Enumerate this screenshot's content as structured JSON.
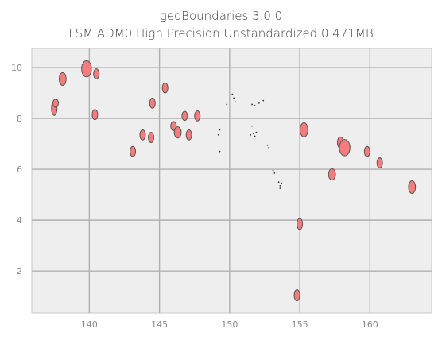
{
  "title": "geoBoundaries 3.0.0",
  "subtitle": "FSM ADM0 High Precision Unstandardized 0.471MB",
  "chart_data": {
    "type": "map",
    "title": "geoBoundaries 3.0.0",
    "subtitle": "FSM ADM0 High Precision Unstandardized 0.471MB",
    "xlabel": "",
    "ylabel": "",
    "xlim": [
      135.9,
      164.4
    ],
    "ylim": [
      0.35,
      10.75
    ],
    "xticks": [
      140,
      145,
      150,
      155,
      160
    ],
    "yticks": [
      2,
      4,
      6,
      8,
      10
    ],
    "grid": true,
    "colors": {
      "fill": "#f47c7c",
      "edge": "#555555",
      "background": "#eeeeee",
      "grid": "#b0b0b0"
    },
    "islands": [
      {
        "x": 139.8,
        "y": 9.95,
        "rx": 0.35,
        "ry": 0.32
      },
      {
        "x": 138.1,
        "y": 9.55,
        "rx": 0.25,
        "ry": 0.25
      },
      {
        "x": 140.5,
        "y": 9.75,
        "rx": 0.2,
        "ry": 0.2
      },
      {
        "x": 137.5,
        "y": 8.4,
        "rx": 0.2,
        "ry": 0.28
      },
      {
        "x": 137.6,
        "y": 8.6,
        "rx": 0.16,
        "ry": 0.16
      },
      {
        "x": 140.4,
        "y": 8.15,
        "rx": 0.2,
        "ry": 0.2
      },
      {
        "x": 144.5,
        "y": 8.6,
        "rx": 0.18,
        "ry": 0.2
      },
      {
        "x": 145.4,
        "y": 9.2,
        "rx": 0.18,
        "ry": 0.2
      },
      {
        "x": 146.8,
        "y": 8.1,
        "rx": 0.16,
        "ry": 0.18
      },
      {
        "x": 147.7,
        "y": 8.1,
        "rx": 0.16,
        "ry": 0.2
      },
      {
        "x": 143.8,
        "y": 7.35,
        "rx": 0.2,
        "ry": 0.2
      },
      {
        "x": 144.4,
        "y": 7.25,
        "rx": 0.18,
        "ry": 0.2
      },
      {
        "x": 146.0,
        "y": 7.7,
        "rx": 0.2,
        "ry": 0.18
      },
      {
        "x": 146.3,
        "y": 7.45,
        "rx": 0.25,
        "ry": 0.22
      },
      {
        "x": 147.1,
        "y": 7.35,
        "rx": 0.18,
        "ry": 0.2
      },
      {
        "x": 143.1,
        "y": 6.7,
        "rx": 0.18,
        "ry": 0.2
      },
      {
        "x": 155.3,
        "y": 7.55,
        "rx": 0.28,
        "ry": 0.28
      },
      {
        "x": 157.9,
        "y": 7.05,
        "rx": 0.22,
        "ry": 0.22
      },
      {
        "x": 158.2,
        "y": 6.85,
        "rx": 0.38,
        "ry": 0.32
      },
      {
        "x": 159.8,
        "y": 6.7,
        "rx": 0.18,
        "ry": 0.2
      },
      {
        "x": 157.3,
        "y": 5.8,
        "rx": 0.25,
        "ry": 0.22
      },
      {
        "x": 160.7,
        "y": 6.25,
        "rx": 0.18,
        "ry": 0.2
      },
      {
        "x": 163.0,
        "y": 5.3,
        "rx": 0.25,
        "ry": 0.25
      },
      {
        "x": 155.0,
        "y": 3.85,
        "rx": 0.2,
        "ry": 0.22
      },
      {
        "x": 154.8,
        "y": 1.05,
        "rx": 0.2,
        "ry": 0.22
      }
    ],
    "specks": [
      {
        "x": 150.2,
        "y": 8.95
      },
      {
        "x": 150.3,
        "y": 8.8
      },
      {
        "x": 150.4,
        "y": 8.65
      },
      {
        "x": 149.8,
        "y": 8.55
      },
      {
        "x": 151.6,
        "y": 8.55
      },
      {
        "x": 151.8,
        "y": 8.5
      },
      {
        "x": 152.1,
        "y": 8.6
      },
      {
        "x": 152.4,
        "y": 8.7
      },
      {
        "x": 151.7,
        "y": 7.4
      },
      {
        "x": 151.8,
        "y": 7.3
      },
      {
        "x": 151.5,
        "y": 7.35
      },
      {
        "x": 151.9,
        "y": 7.45
      },
      {
        "x": 151.6,
        "y": 7.7
      },
      {
        "x": 149.3,
        "y": 7.55
      },
      {
        "x": 149.2,
        "y": 7.35
      },
      {
        "x": 152.7,
        "y": 6.95
      },
      {
        "x": 152.8,
        "y": 6.85
      },
      {
        "x": 149.3,
        "y": 6.7
      },
      {
        "x": 153.1,
        "y": 5.95
      },
      {
        "x": 153.2,
        "y": 5.85
      },
      {
        "x": 153.5,
        "y": 5.5
      },
      {
        "x": 153.6,
        "y": 5.35
      },
      {
        "x": 153.7,
        "y": 5.45
      },
      {
        "x": 153.6,
        "y": 5.25
      }
    ]
  }
}
